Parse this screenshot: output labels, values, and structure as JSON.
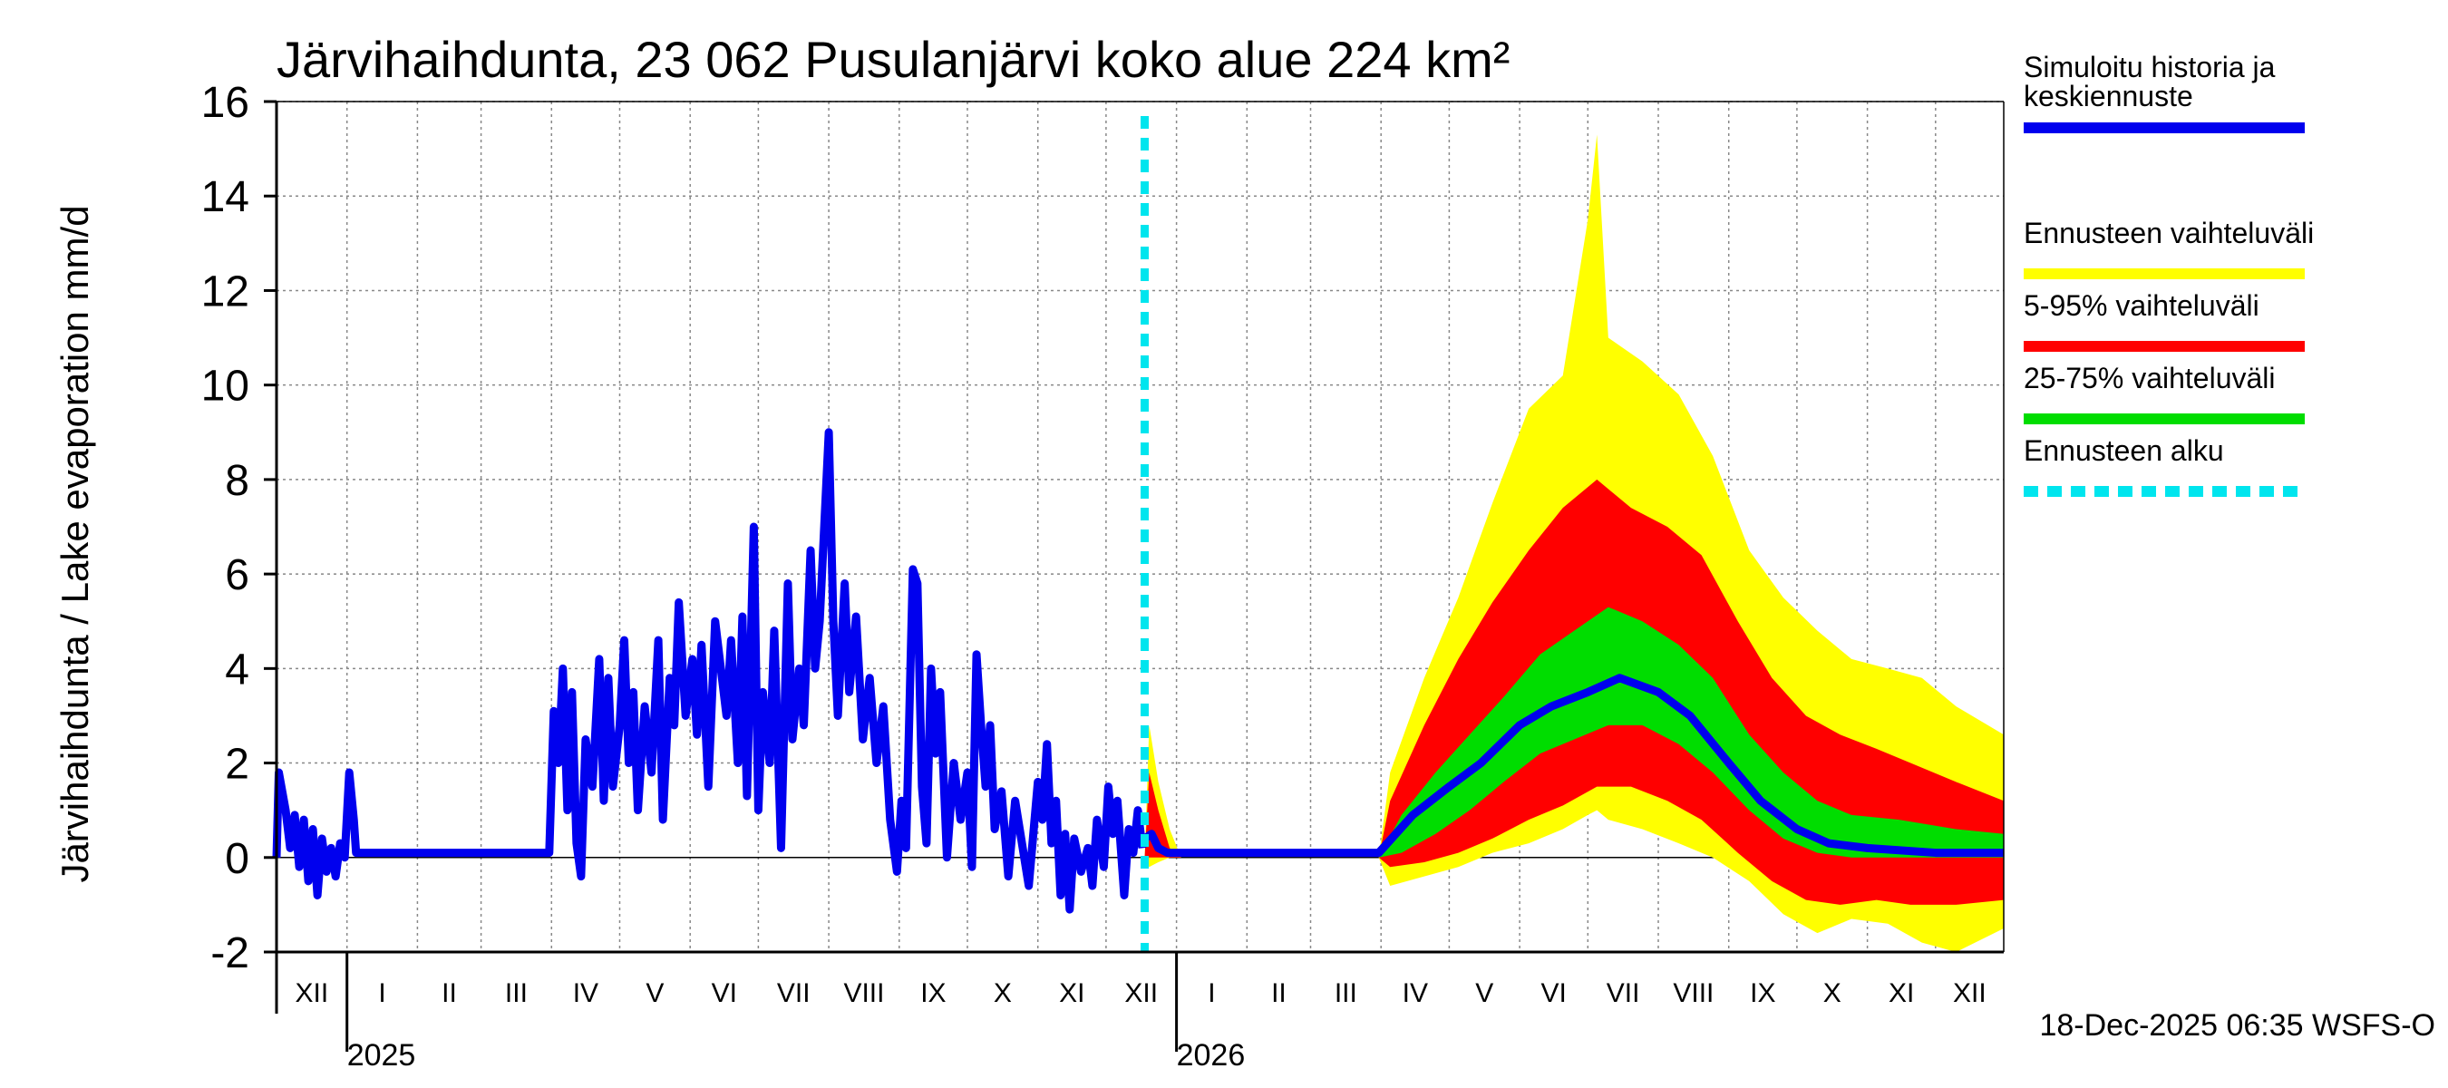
{
  "chart_data": {
    "type": "area",
    "title": "Järvihaihdunta, 23 062 Pusulanjärvi koko alue 224 km²",
    "ylabel": "Järvihaihdunta / Lake evaporation   mm/d",
    "ylim": [
      -2,
      16
    ],
    "yticks": [
      -2,
      0,
      2,
      4,
      6,
      8,
      10,
      12,
      14,
      16
    ],
    "x_start": "2024-12-01",
    "x_end": "2026-12-31",
    "forecast_start": "2025-12-18",
    "months": [
      {
        "label": "XII",
        "start": "2024-12-01"
      },
      {
        "label": "I",
        "start": "2025-01-01"
      },
      {
        "label": "II",
        "start": "2025-02-01"
      },
      {
        "label": "III",
        "start": "2025-03-01"
      },
      {
        "label": "IV",
        "start": "2025-04-01"
      },
      {
        "label": "V",
        "start": "2025-05-01"
      },
      {
        "label": "VI",
        "start": "2025-06-01"
      },
      {
        "label": "VII",
        "start": "2025-07-01"
      },
      {
        "label": "VIII",
        "start": "2025-08-01"
      },
      {
        "label": "IX",
        "start": "2025-09-01"
      },
      {
        "label": "X",
        "start": "2025-10-01"
      },
      {
        "label": "XI",
        "start": "2025-11-01"
      },
      {
        "label": "XII",
        "start": "2025-12-01"
      },
      {
        "label": "I",
        "start": "2026-01-01"
      },
      {
        "label": "II",
        "start": "2026-02-01"
      },
      {
        "label": "III",
        "start": "2026-03-01"
      },
      {
        "label": "IV",
        "start": "2026-04-01"
      },
      {
        "label": "V",
        "start": "2026-05-01"
      },
      {
        "label": "VI",
        "start": "2026-06-01"
      },
      {
        "label": "VII",
        "start": "2026-07-01"
      },
      {
        "label": "VIII",
        "start": "2026-08-01"
      },
      {
        "label": "IX",
        "start": "2026-09-01"
      },
      {
        "label": "X",
        "start": "2026-10-01"
      },
      {
        "label": "XI",
        "start": "2026-11-01"
      },
      {
        "label": "XII",
        "start": "2026-12-01"
      }
    ],
    "years": [
      {
        "label": "2025",
        "start": "2025-01-01"
      },
      {
        "label": "2026",
        "start": "2026-01-01"
      }
    ],
    "history": {
      "name": "Simuloitu historia ja keskiennuste",
      "color": "#0000ee",
      "points": [
        [
          "2024-12-01",
          0.0
        ],
        [
          "2024-12-02",
          1.8
        ],
        [
          "2024-12-05",
          1.0
        ],
        [
          "2024-12-07",
          0.2
        ],
        [
          "2024-12-09",
          0.9
        ],
        [
          "2024-12-11",
          -0.2
        ],
        [
          "2024-12-13",
          0.8
        ],
        [
          "2024-12-15",
          -0.5
        ],
        [
          "2024-12-17",
          0.6
        ],
        [
          "2024-12-19",
          -0.8
        ],
        [
          "2024-12-21",
          0.4
        ],
        [
          "2024-12-23",
          -0.3
        ],
        [
          "2024-12-25",
          0.2
        ],
        [
          "2024-12-27",
          -0.4
        ],
        [
          "2024-12-29",
          0.3
        ],
        [
          "2024-12-31",
          0.0
        ],
        [
          "2025-01-02",
          1.8
        ],
        [
          "2025-01-04",
          0.8
        ],
        [
          "2025-01-05",
          0.1
        ],
        [
          "2025-03-31",
          0.1
        ],
        [
          "2025-04-02",
          3.1
        ],
        [
          "2025-04-04",
          2.0
        ],
        [
          "2025-04-06",
          4.0
        ],
        [
          "2025-04-08",
          1.0
        ],
        [
          "2025-04-10",
          3.5
        ],
        [
          "2025-04-12",
          0.3
        ],
        [
          "2025-04-14",
          -0.4
        ],
        [
          "2025-04-16",
          2.5
        ],
        [
          "2025-04-19",
          1.5
        ],
        [
          "2025-04-22",
          4.2
        ],
        [
          "2025-04-24",
          1.2
        ],
        [
          "2025-04-26",
          3.8
        ],
        [
          "2025-04-28",
          1.5
        ],
        [
          "2025-05-01",
          2.8
        ],
        [
          "2025-05-03",
          4.6
        ],
        [
          "2025-05-05",
          2.0
        ],
        [
          "2025-05-07",
          3.5
        ],
        [
          "2025-05-09",
          1.0
        ],
        [
          "2025-05-12",
          3.2
        ],
        [
          "2025-05-15",
          1.8
        ],
        [
          "2025-05-18",
          4.6
        ],
        [
          "2025-05-20",
          0.8
        ],
        [
          "2025-05-23",
          3.8
        ],
        [
          "2025-05-25",
          2.8
        ],
        [
          "2025-05-27",
          5.4
        ],
        [
          "2025-05-30",
          3.0
        ],
        [
          "2025-06-02",
          4.2
        ],
        [
          "2025-06-04",
          2.6
        ],
        [
          "2025-06-06",
          4.5
        ],
        [
          "2025-06-09",
          1.5
        ],
        [
          "2025-06-12",
          5.0
        ],
        [
          "2025-06-15",
          3.8
        ],
        [
          "2025-06-17",
          3.0
        ],
        [
          "2025-06-19",
          4.6
        ],
        [
          "2025-06-22",
          2.0
        ],
        [
          "2025-06-24",
          5.1
        ],
        [
          "2025-06-26",
          1.3
        ],
        [
          "2025-06-29",
          7.0
        ],
        [
          "2025-07-01",
          1.0
        ],
        [
          "2025-07-03",
          3.5
        ],
        [
          "2025-07-06",
          2.0
        ],
        [
          "2025-07-08",
          4.8
        ],
        [
          "2025-07-11",
          0.2
        ],
        [
          "2025-07-14",
          5.8
        ],
        [
          "2025-07-16",
          2.5
        ],
        [
          "2025-07-19",
          4.0
        ],
        [
          "2025-07-21",
          2.8
        ],
        [
          "2025-07-24",
          6.5
        ],
        [
          "2025-07-26",
          4.0
        ],
        [
          "2025-07-28",
          5.0
        ],
        [
          "2025-08-01",
          9.0
        ],
        [
          "2025-08-03",
          5.0
        ],
        [
          "2025-08-05",
          3.0
        ],
        [
          "2025-08-08",
          5.8
        ],
        [
          "2025-08-10",
          3.5
        ],
        [
          "2025-08-13",
          5.1
        ],
        [
          "2025-08-16",
          2.5
        ],
        [
          "2025-08-19",
          3.8
        ],
        [
          "2025-08-22",
          2.0
        ],
        [
          "2025-08-25",
          3.2
        ],
        [
          "2025-08-28",
          0.8
        ],
        [
          "2025-08-31",
          -0.3
        ],
        [
          "2025-09-02",
          1.2
        ],
        [
          "2025-09-04",
          0.2
        ],
        [
          "2025-09-07",
          6.1
        ],
        [
          "2025-09-09",
          5.8
        ],
        [
          "2025-09-11",
          1.5
        ],
        [
          "2025-09-13",
          0.3
        ],
        [
          "2025-09-15",
          4.0
        ],
        [
          "2025-09-17",
          2.2
        ],
        [
          "2025-09-19",
          3.5
        ],
        [
          "2025-09-22",
          0.0
        ],
        [
          "2025-09-25",
          2.0
        ],
        [
          "2025-09-28",
          0.8
        ],
        [
          "2025-10-01",
          1.8
        ],
        [
          "2025-10-03",
          -0.2
        ],
        [
          "2025-10-05",
          4.3
        ],
        [
          "2025-10-07",
          2.8
        ],
        [
          "2025-10-09",
          1.5
        ],
        [
          "2025-10-11",
          2.8
        ],
        [
          "2025-10-13",
          0.6
        ],
        [
          "2025-10-16",
          1.4
        ],
        [
          "2025-10-19",
          -0.4
        ],
        [
          "2025-10-22",
          1.2
        ],
        [
          "2025-10-25",
          0.3
        ],
        [
          "2025-10-28",
          -0.6
        ],
        [
          "2025-11-01",
          1.6
        ],
        [
          "2025-11-03",
          0.8
        ],
        [
          "2025-11-05",
          2.4
        ],
        [
          "2025-11-07",
          0.3
        ],
        [
          "2025-11-09",
          1.2
        ],
        [
          "2025-11-11",
          -0.8
        ],
        [
          "2025-11-13",
          0.5
        ],
        [
          "2025-11-15",
          -1.1
        ],
        [
          "2025-11-17",
          0.4
        ],
        [
          "2025-11-20",
          -0.3
        ],
        [
          "2025-11-23",
          0.2
        ],
        [
          "2025-11-25",
          -0.6
        ],
        [
          "2025-11-27",
          0.8
        ],
        [
          "2025-11-30",
          -0.2
        ],
        [
          "2025-12-02",
          1.5
        ],
        [
          "2025-12-04",
          0.5
        ],
        [
          "2025-12-06",
          1.2
        ],
        [
          "2025-12-09",
          -0.8
        ],
        [
          "2025-12-11",
          0.6
        ],
        [
          "2025-12-13",
          0.1
        ],
        [
          "2025-12-15",
          1.0
        ],
        [
          "2025-12-17",
          0.2
        ]
      ]
    },
    "forecast": {
      "median": {
        "name": "Simuloitu historia ja keskiennuste",
        "color": "#0000ee",
        "points": [
          [
            "2025-12-18",
            0.4
          ],
          [
            "2025-12-21",
            0.5
          ],
          [
            "2025-12-24",
            0.2
          ],
          [
            "2025-12-28",
            0.1
          ],
          [
            "2026-03-31",
            0.1
          ],
          [
            "2026-04-15",
            0.9
          ],
          [
            "2026-05-01",
            1.5
          ],
          [
            "2026-05-15",
            2.0
          ],
          [
            "2026-06-01",
            2.8
          ],
          [
            "2026-06-15",
            3.2
          ],
          [
            "2026-07-01",
            3.5
          ],
          [
            "2026-07-15",
            3.8
          ],
          [
            "2026-08-01",
            3.5
          ],
          [
            "2026-08-15",
            3.0
          ],
          [
            "2026-09-01",
            2.0
          ],
          [
            "2026-09-15",
            1.2
          ],
          [
            "2026-10-01",
            0.6
          ],
          [
            "2026-10-15",
            0.3
          ],
          [
            "2026-11-01",
            0.2
          ],
          [
            "2026-12-01",
            0.1
          ],
          [
            "2026-12-31",
            0.1
          ]
        ]
      },
      "bands": [
        {
          "name": "Ennusteen vaihteluväli",
          "color": "#ffff00",
          "points": [
            [
              "2025-12-18",
              0,
              0
            ],
            [
              "2025-12-20",
              -0.2,
              2.8
            ],
            [
              "2025-12-24",
              -0.1,
              1.6
            ],
            [
              "2025-12-29",
              0,
              0.6
            ],
            [
              "2026-01-03",
              0,
              0
            ],
            [
              "2026-03-31",
              0,
              0
            ],
            [
              "2026-04-05",
              -0.6,
              1.8
            ],
            [
              "2026-04-20",
              -0.4,
              3.8
            ],
            [
              "2026-05-05",
              -0.2,
              5.5
            ],
            [
              "2026-05-20",
              0.1,
              7.5
            ],
            [
              "2026-06-05",
              0.3,
              9.5
            ],
            [
              "2026-06-20",
              0.6,
              10.2
            ],
            [
              "2026-07-01",
              0.9,
              13.5
            ],
            [
              "2026-07-05",
              1.0,
              15.3
            ],
            [
              "2026-07-10",
              0.8,
              11.0
            ],
            [
              "2026-07-25",
              0.6,
              10.5
            ],
            [
              "2026-08-10",
              0.3,
              9.8
            ],
            [
              "2026-08-25",
              0.0,
              8.5
            ],
            [
              "2026-09-10",
              -0.5,
              6.5
            ],
            [
              "2026-09-25",
              -1.2,
              5.5
            ],
            [
              "2026-10-10",
              -1.6,
              4.8
            ],
            [
              "2026-10-25",
              -1.3,
              4.2
            ],
            [
              "2026-11-10",
              -1.4,
              4.0
            ],
            [
              "2026-11-25",
              -1.8,
              3.8
            ],
            [
              "2026-12-10",
              -2.0,
              3.2
            ],
            [
              "2026-12-31",
              -1.5,
              2.6
            ]
          ]
        },
        {
          "name": "5-95% vaihteluväli",
          "color": "#ff0000",
          "points": [
            [
              "2025-12-18",
              0,
              0
            ],
            [
              "2025-12-20",
              0.0,
              1.8
            ],
            [
              "2025-12-24",
              0.0,
              1.0
            ],
            [
              "2025-12-29",
              0,
              0.2
            ],
            [
              "2026-01-03",
              0,
              0
            ],
            [
              "2026-03-31",
              0,
              0
            ],
            [
              "2026-04-05",
              -0.2,
              1.2
            ],
            [
              "2026-04-20",
              -0.1,
              2.8
            ],
            [
              "2026-05-05",
              0.1,
              4.2
            ],
            [
              "2026-05-20",
              0.4,
              5.4
            ],
            [
              "2026-06-05",
              0.8,
              6.5
            ],
            [
              "2026-06-20",
              1.1,
              7.4
            ],
            [
              "2026-07-05",
              1.5,
              8.0
            ],
            [
              "2026-07-20",
              1.5,
              7.4
            ],
            [
              "2026-08-05",
              1.2,
              7.0
            ],
            [
              "2026-08-20",
              0.8,
              6.4
            ],
            [
              "2026-09-05",
              0.1,
              5.0
            ],
            [
              "2026-09-20",
              -0.5,
              3.8
            ],
            [
              "2026-10-05",
              -0.9,
              3.0
            ],
            [
              "2026-10-20",
              -1.0,
              2.6
            ],
            [
              "2026-11-05",
              -0.9,
              2.3
            ],
            [
              "2026-11-20",
              -1.0,
              2.0
            ],
            [
              "2026-12-10",
              -1.0,
              1.6
            ],
            [
              "2026-12-31",
              -0.9,
              1.2
            ]
          ]
        },
        {
          "name": "25-75% vaihteluväli",
          "color": "#00dd00",
          "points": [
            [
              "2026-03-31",
              0,
              0
            ],
            [
              "2026-04-10",
              0.1,
              0.9
            ],
            [
              "2026-04-25",
              0.5,
              1.8
            ],
            [
              "2026-05-10",
              1.0,
              2.6
            ],
            [
              "2026-05-25",
              1.6,
              3.4
            ],
            [
              "2026-06-10",
              2.2,
              4.3
            ],
            [
              "2026-06-25",
              2.5,
              4.8
            ],
            [
              "2026-07-10",
              2.8,
              5.3
            ],
            [
              "2026-07-25",
              2.8,
              5.0
            ],
            [
              "2026-08-10",
              2.4,
              4.5
            ],
            [
              "2026-08-25",
              1.8,
              3.8
            ],
            [
              "2026-09-10",
              1.0,
              2.6
            ],
            [
              "2026-09-25",
              0.4,
              1.8
            ],
            [
              "2026-10-10",
              0.1,
              1.2
            ],
            [
              "2026-10-25",
              0.0,
              0.9
            ],
            [
              "2026-11-15",
              0.0,
              0.8
            ],
            [
              "2026-12-10",
              0.0,
              0.6
            ],
            [
              "2026-12-31",
              0.0,
              0.5
            ]
          ]
        }
      ]
    },
    "legend": [
      {
        "label": "Simuloitu historia ja keskiennuste",
        "color": "#0000ee",
        "style": "solid"
      },
      {
        "label": "Ennusteen vaihteluväli",
        "color": "#ffff00",
        "style": "solid"
      },
      {
        "label": "5-95% vaihteluväli",
        "color": "#ff0000",
        "style": "solid"
      },
      {
        "label": "25-75% vaihteluväli",
        "color": "#00dd00",
        "style": "solid"
      },
      {
        "label": "Ennusteen alku",
        "color": "#00e5ee",
        "style": "dashed"
      }
    ],
    "footer": "18-Dec-2025 06:35 WSFS-O"
  }
}
